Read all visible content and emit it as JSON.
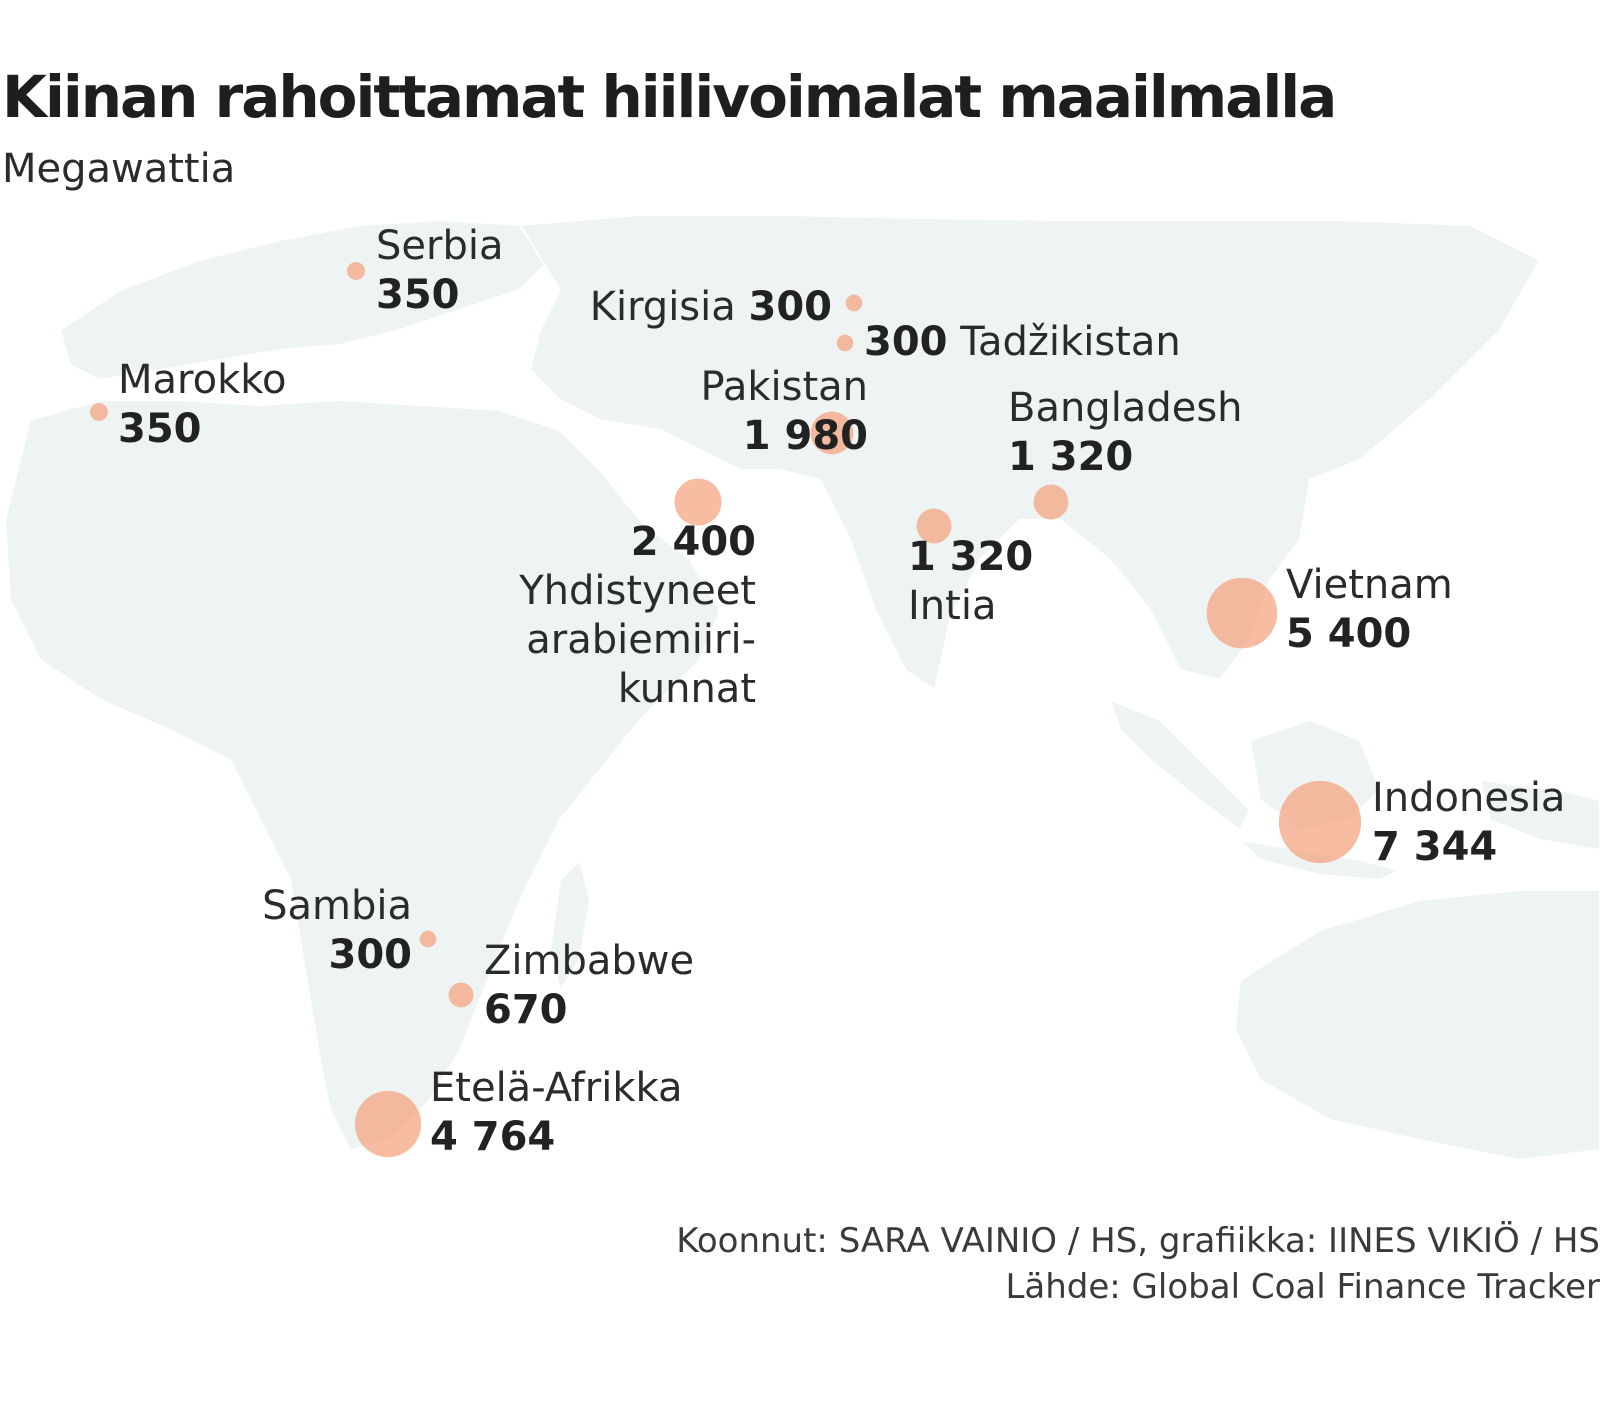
{
  "title": "Kiinan rahoittamat hiilivoimalat maailmalla",
  "subtitle": "Megawattia",
  "colors": {
    "bubble": "#f4a583",
    "land": "#eef3f4",
    "border": "#ffffff",
    "text": "#2b2b2b"
  },
  "points": [
    {
      "id": "serbia",
      "name": "Serbia",
      "value": "350",
      "mw": 350
    },
    {
      "id": "marokko",
      "name": "Marokko",
      "value": "350",
      "mw": 350
    },
    {
      "id": "kirgisia",
      "name": "Kirgisia",
      "value": "300",
      "mw": 300
    },
    {
      "id": "tadzikistan",
      "name": "Tadžikistan",
      "value": "300",
      "mw": 300
    },
    {
      "id": "pakistan",
      "name": "Pakistan",
      "value": "1 980",
      "mw": 1980
    },
    {
      "id": "bangladesh",
      "name": "Bangladesh",
      "value": "1 320",
      "mw": 1320
    },
    {
      "id": "uae",
      "name_lines": [
        "Yhdistyneet",
        "arabiemiiri-",
        "kunnat"
      ],
      "value": "2 400",
      "mw": 2400
    },
    {
      "id": "intia",
      "name": "Intia",
      "value": "1 320",
      "mw": 1320
    },
    {
      "id": "vietnam",
      "name": "Vietnam",
      "value": "5 400",
      "mw": 5400
    },
    {
      "id": "indonesia",
      "name": "Indonesia",
      "value": "7 344",
      "mw": 7344
    },
    {
      "id": "sambia",
      "name": "Sambia",
      "value": "300",
      "mw": 300
    },
    {
      "id": "zimbabwe",
      "name": "Zimbabwe",
      "value": "670",
      "mw": 670
    },
    {
      "id": "etela-afrikka",
      "name": "Etelä-Afrikka",
      "value": "4 764",
      "mw": 4764
    }
  ],
  "credits": {
    "line1": "Koonnut: SARA VAINIO / HS, grafiikka: IINES VIKIÖ / HS",
    "line2": "Lähde: Global Coal Finance Tracker"
  }
}
